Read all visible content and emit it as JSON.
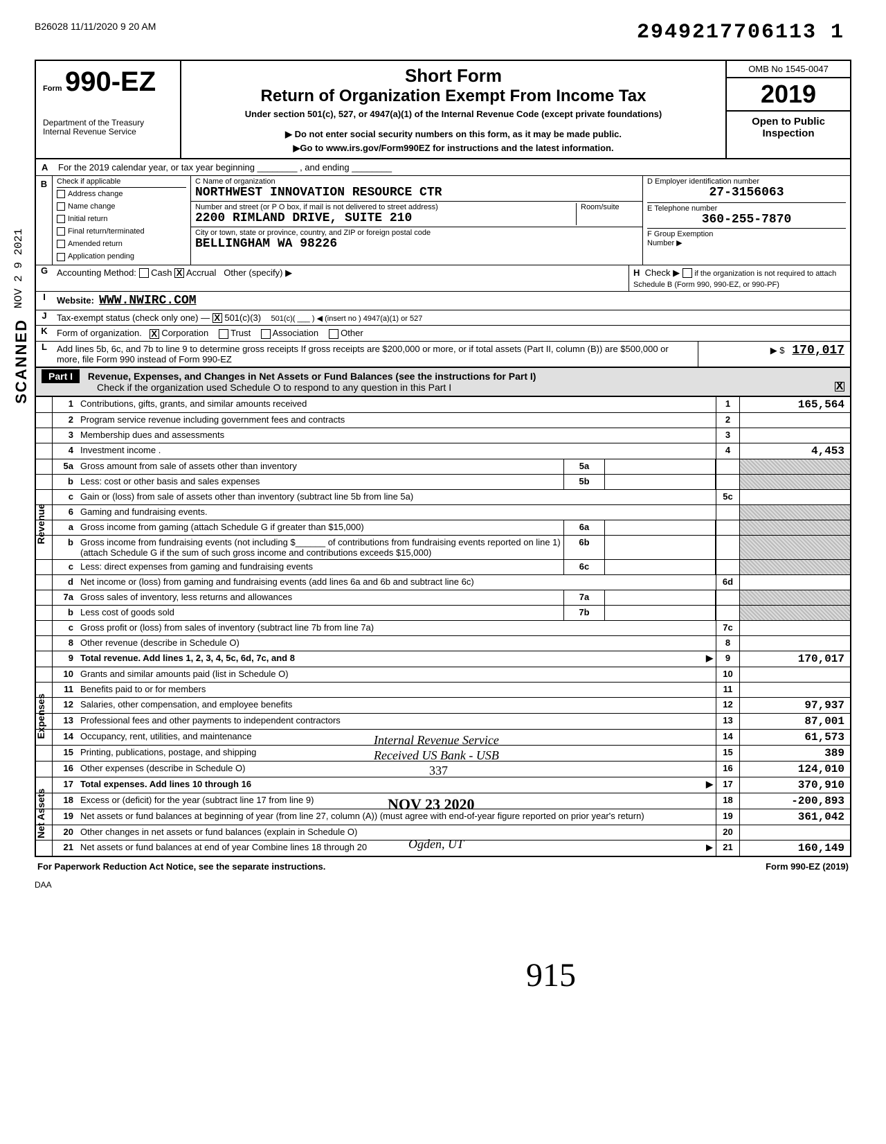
{
  "meta": {
    "print_header": "B26028 11/11/2020 9 20 AM",
    "barcode_number": "2949217706113 1",
    "scanned_label": "SCANNED",
    "date_received_side": "NOV 2 9 2021"
  },
  "form": {
    "form_label": "Form",
    "form_number": "990-EZ",
    "short_form": "Short Form",
    "title": "Return of Organization Exempt From Income Tax",
    "under": "Under section 501(c), 527, or 4947(a)(1) of the Internal Revenue Code (except private foundations)",
    "warn": "▶ Do not enter social security numbers on this form, as it may be made public.",
    "goto": "▶Go to www.irs.gov/Form990EZ for instructions and the latest information.",
    "dept1": "Department of the Treasury",
    "dept2": "Internal Revenue Service",
    "omb": "OMB No 1545-0047",
    "year": "2019",
    "open": "Open to Public Inspection",
    "sig_initials": "915"
  },
  "lineA": "For the 2019 calendar year, or tax year beginning ________ , and ending ________",
  "boxB": {
    "label": "Check if applicable",
    "items": [
      "Address change",
      "Name change",
      "Initial return",
      "Final return/terminated",
      "Amended return",
      "Application pending"
    ]
  },
  "boxC": {
    "label": "C  Name of organization",
    "name": "NORTHWEST INNOVATION RESOURCE CTR",
    "street_label": "Number and street (or P O box, if mail is not delivered to street address)",
    "street": "2200 RIMLAND DRIVE, SUITE 210",
    "room_label": "Room/suite",
    "city_label": "City or town, state or province, country, and ZIP or foreign postal code",
    "city": "BELLINGHAM            WA 98226"
  },
  "boxD": {
    "label": "D  Employer identification number",
    "value": "27-3156063"
  },
  "boxE": {
    "label": "E  Telephone number",
    "value": "360-255-7870"
  },
  "boxF": {
    "label": "F  Group Exemption",
    "sub": "Number ▶",
    "value": ""
  },
  "lineG": {
    "label": "Accounting Method:",
    "cash": "Cash",
    "accrual": "Accrual",
    "other": "Other (specify) ▶",
    "accrual_checked": "X"
  },
  "lineH": {
    "label": "Check ▶",
    "text": "if the organization is not required to attach Schedule B (Form 990, 990-EZ, or 990-PF)"
  },
  "lineI": {
    "label": "Website:",
    "value": "WWW.NWIRC.COM"
  },
  "lineJ": {
    "label": "Tax-exempt status (check only one) —",
    "opt": "501(c)(3)",
    "checked": "X",
    "rest": "501(c)( ___ ) ◀ (insert no )   4947(a)(1) or   527"
  },
  "lineK": {
    "label": "Form of organization.",
    "corp": "Corporation",
    "corp_checked": "X",
    "trust": "Trust",
    "assoc": "Association",
    "other": "Other"
  },
  "lineL": {
    "text": "Add lines 5b, 6c, and 7b to line 9 to determine gross receipts  If gross receipts are $200,000 or more, or if total assets (Part II, column (B)) are $500,000 or more, file Form 990 instead of Form 990-EZ",
    "arrow": "▶ $",
    "value": "170,017"
  },
  "part1": {
    "tag": "Part I",
    "title": "Revenue, Expenses, and Changes in Net Assets or Fund Balances (see the instructions for Part I)",
    "check": "Check if the organization used Schedule O to respond to any question in this Part I",
    "checked": "X"
  },
  "side_labels": {
    "revenue": "Revenue",
    "expenses": "Expenses",
    "netassets": "Net Assets"
  },
  "lines": [
    {
      "n": "1",
      "d": "Contributions, gifts, grants, and similar amounts received",
      "idx": "1",
      "amt": "165,564"
    },
    {
      "n": "2",
      "d": "Program service revenue including government fees and contracts",
      "idx": "2",
      "amt": ""
    },
    {
      "n": "3",
      "d": "Membership dues and assessments",
      "idx": "3",
      "amt": ""
    },
    {
      "n": "4",
      "d": "Investment income .",
      "idx": "4",
      "amt": "4,453"
    },
    {
      "n": "5a",
      "d": "Gross amount from sale of assets other than inventory",
      "sub": "5a",
      "subval": "",
      "shade_amt": true
    },
    {
      "n": "b",
      "d": "Less: cost or other basis and sales expenses",
      "sub": "5b",
      "subval": "",
      "shade_amt": true
    },
    {
      "n": "c",
      "d": "Gain or (loss) from sale of assets other than inventory (subtract line 5b from line 5a)",
      "idx": "5c",
      "amt": ""
    },
    {
      "n": "6",
      "d": "Gaming and fundraising events.",
      "shade_amt": true
    },
    {
      "n": "a",
      "d": "Gross income from gaming (attach Schedule G if greater than $15,000)",
      "sub": "6a",
      "subval": "",
      "shade_amt": true
    },
    {
      "n": "b",
      "d": "Gross income from fundraising events (not including $______ of contributions from fundraising events reported on line 1) (attach Schedule G if the sum of such gross income and contributions exceeds $15,000)",
      "sub": "6b",
      "subval": "",
      "shade_amt": true
    },
    {
      "n": "c",
      "d": "Less: direct expenses from gaming and fundraising events",
      "sub": "6c",
      "subval": "",
      "shade_amt": true
    },
    {
      "n": "d",
      "d": "Net income or (loss) from gaming and fundraising events (add lines 6a and 6b and subtract line 6c)",
      "idx": "6d",
      "amt": ""
    },
    {
      "n": "7a",
      "d": "Gross sales of inventory, less returns and allowances",
      "sub": "7a",
      "subval": "",
      "shade_amt": true
    },
    {
      "n": "b",
      "d": "Less cost of goods sold",
      "sub": "7b",
      "subval": "",
      "shade_amt": true
    },
    {
      "n": "c",
      "d": "Gross profit or (loss) from sales of inventory (subtract line 7b from line 7a)",
      "idx": "7c",
      "amt": ""
    },
    {
      "n": "8",
      "d": "Other revenue (describe in Schedule O)",
      "idx": "8",
      "amt": ""
    },
    {
      "n": "9",
      "d": "Total revenue. Add lines 1, 2, 3, 4, 5c, 6d, 7c, and 8",
      "idx": "9",
      "amt": "170,017",
      "arrow": true,
      "bold": true
    },
    {
      "n": "10",
      "d": "Grants and similar amounts paid (list in Schedule O)",
      "idx": "10",
      "amt": ""
    },
    {
      "n": "11",
      "d": "Benefits paid to or for members",
      "idx": "11",
      "amt": ""
    },
    {
      "n": "12",
      "d": "Salaries, other compensation, and employee benefits",
      "idx": "12",
      "amt": "97,937"
    },
    {
      "n": "13",
      "d": "Professional fees and other payments to independent contractors",
      "idx": "13",
      "amt": "87,001"
    },
    {
      "n": "14",
      "d": "Occupancy, rent, utilities, and maintenance",
      "idx": "14",
      "amt": "61,573"
    },
    {
      "n": "15",
      "d": "Printing, publications, postage, and shipping",
      "idx": "15",
      "amt": "389"
    },
    {
      "n": "16",
      "d": "Other expenses (describe in Schedule O)",
      "idx": "16",
      "amt": "124,010"
    },
    {
      "n": "17",
      "d": "Total expenses. Add lines 10 through 16",
      "idx": "17",
      "amt": "370,910",
      "arrow": true,
      "bold": true
    },
    {
      "n": "18",
      "d": "Excess or (deficit) for the year (subtract line 17 from line 9)",
      "idx": "18",
      "amt": "-200,893"
    },
    {
      "n": "19",
      "d": "Net assets or fund balances at beginning of year (from line 27, column (A)) (must agree with end-of-year figure reported on prior year's return)",
      "idx": "19",
      "amt": "361,042",
      "shade_idx_top": true
    },
    {
      "n": "20",
      "d": "Other changes in net assets or fund balances (explain in Schedule O)",
      "idx": "20",
      "amt": ""
    },
    {
      "n": "21",
      "d": "Net assets or fund balances at end of year  Combine lines 18 through 20",
      "idx": "21",
      "amt": "160,149",
      "arrow": true
    }
  ],
  "stamps": {
    "irs1": "Internal Revenue Service",
    "irs2": "Received US Bank - USB",
    "irs3": "337",
    "irs4": "NOV 23 2020",
    "irs5": "Ogden, UT"
  },
  "footer": {
    "left": "For Paperwork Reduction Act Notice, see the separate instructions.",
    "right": "Form 990-EZ (2019)",
    "daa": "DAA"
  }
}
